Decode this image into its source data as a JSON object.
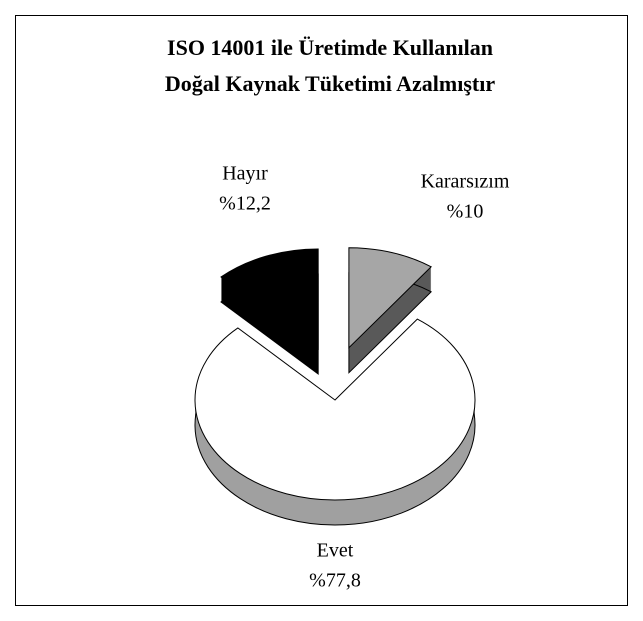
{
  "chart_data": {
    "type": "pie3d",
    "title": [
      "ISO 14001 ile Üretimde Kullanılan",
      "Doğal Kaynak Tüketimi Azalmıştır"
    ],
    "categories": [
      "Kararsızım",
      "Evet",
      "Hayır"
    ],
    "values": [
      10,
      77.8,
      12.2
    ],
    "value_labels": [
      "%10",
      "%77,8",
      "%12,2"
    ],
    "colors": [
      "#a6a6a6",
      "#ffffff",
      "#000000"
    ],
    "side_colors": [
      "#595959",
      "#a0a0a0",
      "#000000"
    ]
  }
}
